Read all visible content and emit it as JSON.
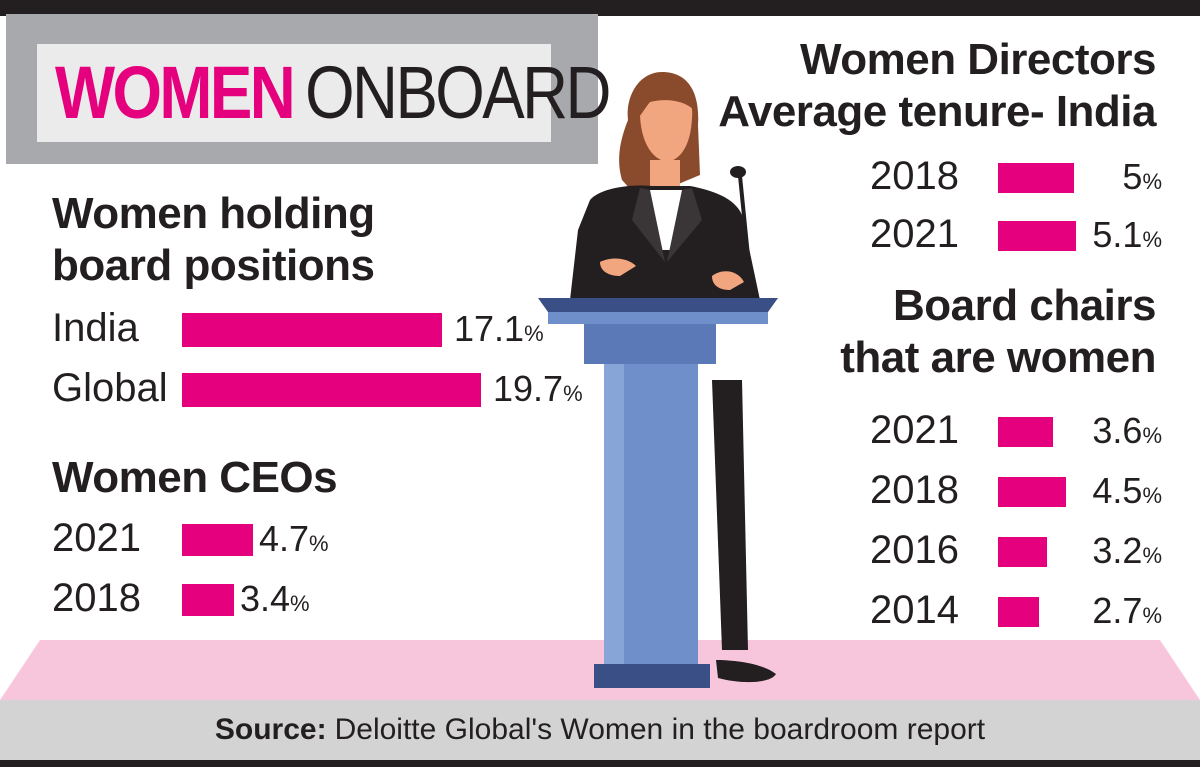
{
  "title": {
    "part1": "WOMEN",
    "part2": "ONBOARD"
  },
  "source": {
    "label": "Source:",
    "text": "Deloitte Global's Women in the boardroom report"
  },
  "chart_data": [
    {
      "type": "bar",
      "title": "Women holding board positions",
      "categories": [
        "India",
        "Global"
      ],
      "values": [
        17.1,
        19.7
      ],
      "labels": [
        "17.1",
        "19.7"
      ],
      "unit": "%"
    },
    {
      "type": "bar",
      "title": "Women CEOs",
      "categories": [
        "2021",
        "2018"
      ],
      "values": [
        4.7,
        3.4
      ],
      "labels": [
        "4.7",
        "3.4"
      ],
      "unit": "%"
    },
    {
      "type": "bar",
      "title": "Women Directors Average tenure- India",
      "categories": [
        "2018",
        "2021"
      ],
      "values": [
        5,
        5.1
      ],
      "labels": [
        "5",
        "5.1"
      ],
      "unit": "%"
    },
    {
      "type": "bar",
      "title": "Board chairs that are women",
      "categories": [
        "2021",
        "2018",
        "2016",
        "2014"
      ],
      "values": [
        3.6,
        4.5,
        3.2,
        2.7
      ],
      "labels": [
        "3.6",
        "4.5",
        "3.2",
        "2.7"
      ],
      "unit": "%"
    }
  ],
  "colors": {
    "bar": "#e5007e",
    "text": "#231f20",
    "podium": "#6f8fcb",
    "floor": "#f7c6dd"
  }
}
